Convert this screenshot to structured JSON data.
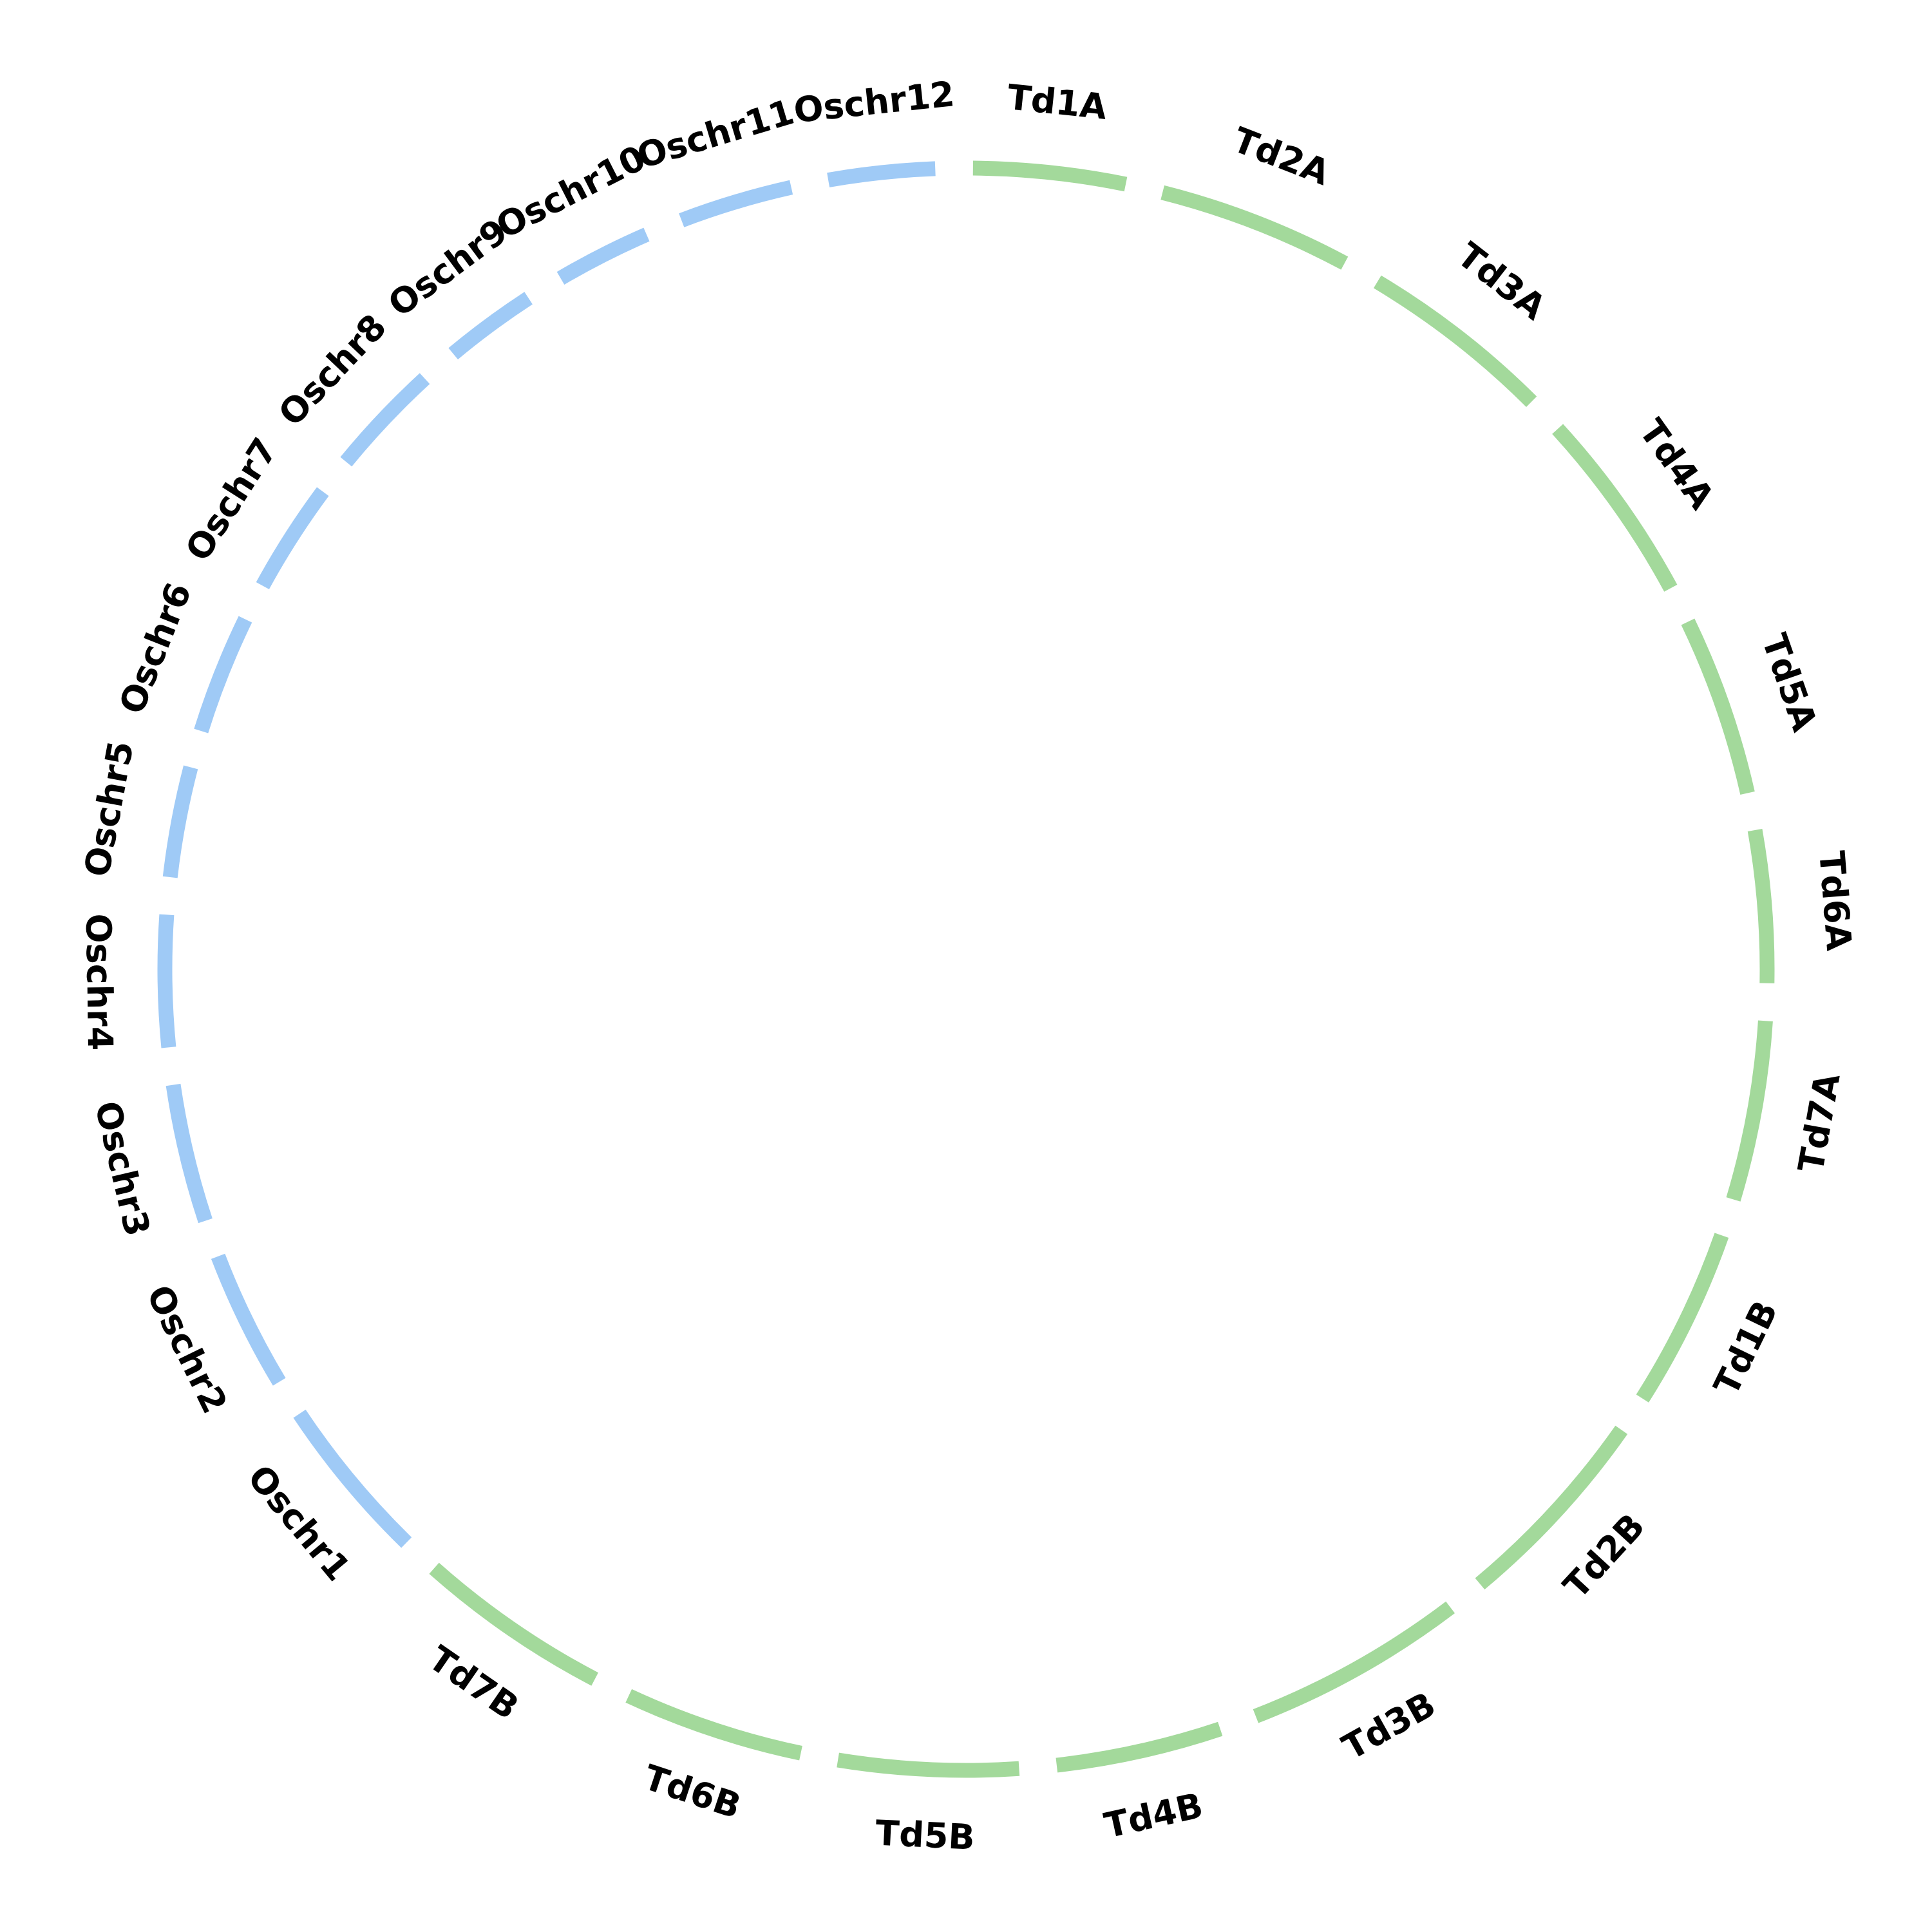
{
  "segments": [
    {
      "label": "Td1A",
      "length": 11,
      "color": "#a3d99b"
    },
    {
      "label": "Td2A",
      "length": 14,
      "color": "#a3d99b"
    },
    {
      "label": "Td3A",
      "length": 14,
      "color": "#a3d99b"
    },
    {
      "label": "Td4A",
      "length": 14,
      "color": "#a3d99b"
    },
    {
      "label": "Td5A",
      "length": 13,
      "color": "#a3d99b"
    },
    {
      "label": "Td6A",
      "length": 11,
      "color": "#a3d99b"
    },
    {
      "label": "Td7A",
      "length": 13,
      "color": "#a3d99b"
    },
    {
      "label": "Td1B",
      "length": 13,
      "color": "#a3d99b"
    },
    {
      "label": "Td2B",
      "length": 15,
      "color": "#a3d99b"
    },
    {
      "label": "Td3B",
      "length": 16,
      "color": "#a3d99b"
    },
    {
      "label": "Td4B",
      "length": 12,
      "color": "#a3d99b"
    },
    {
      "label": "Td5B",
      "length": 13,
      "color": "#a3d99b"
    },
    {
      "label": "Td6B",
      "length": 13,
      "color": "#a3d99b"
    },
    {
      "label": "Td7B",
      "length": 14,
      "color": "#a3d99b"
    },
    {
      "label": "Oschr1",
      "length": 12,
      "color": "#9fcaf6"
    },
    {
      "label": "Oschr2",
      "length": 10,
      "color": "#9fcaf6"
    },
    {
      "label": "Oschr3",
      "length": 10,
      "color": "#9fcaf6"
    },
    {
      "label": "Oschr4",
      "length": 9.5,
      "color": "#9fcaf6"
    },
    {
      "label": "Oschr5",
      "length": 8,
      "color": "#9fcaf6"
    },
    {
      "label": "Oschr6",
      "length": 8.6,
      "color": "#9fcaf6"
    },
    {
      "label": "Oschr7",
      "length": 8,
      "color": "#9fcaf6"
    },
    {
      "label": "Oschr8",
      "length": 8.2,
      "color": "#9fcaf6"
    },
    {
      "label": "Oschr9",
      "length": 6.7,
      "color": "#9fcaf6"
    },
    {
      "label": "Oschr10",
      "length": 6.9,
      "color": "#9fcaf6"
    },
    {
      "label": "Oschr11",
      "length": 8.2,
      "color": "#9fcaf6"
    },
    {
      "label": "Oschr12",
      "length": 7.7,
      "color": "#9fcaf6"
    }
  ]
}
